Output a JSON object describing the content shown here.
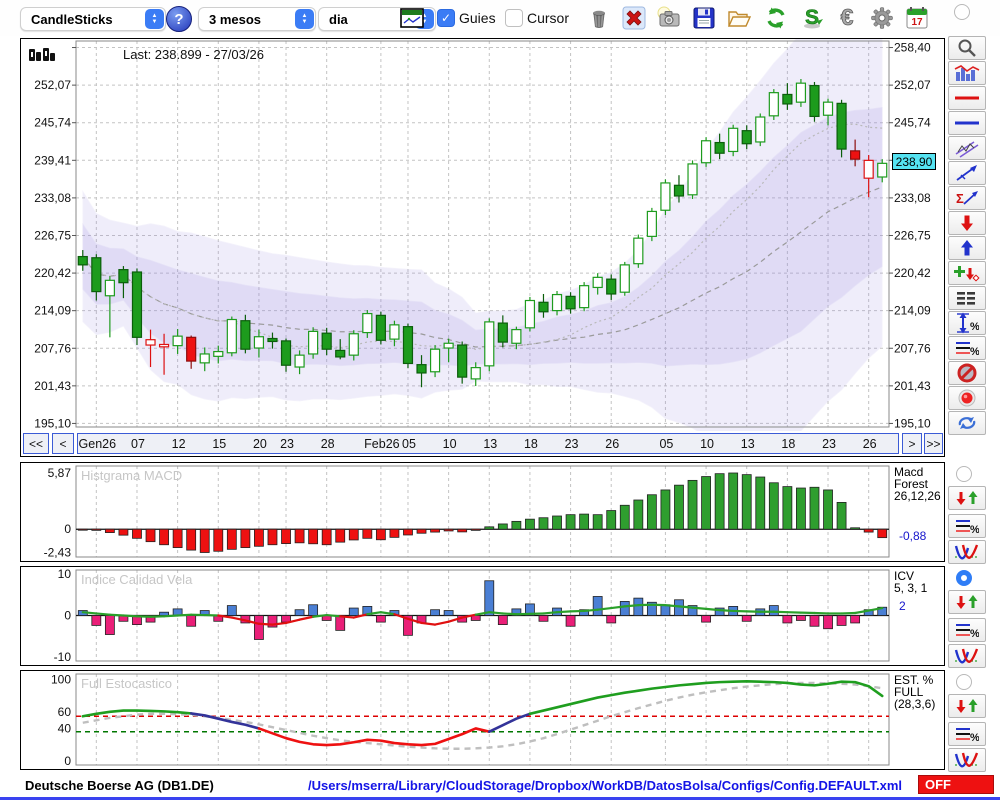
{
  "toolbar": {
    "chart_type": "CandleSticks",
    "period": "3 mesos",
    "interval": "dia",
    "guies_label": "Guies",
    "cursor_label": "Cursor",
    "calendar_day": "17",
    "icons": [
      "chart-config",
      "trash",
      "delete-red-x",
      "camera",
      "save-floppy",
      "open-folder",
      "refresh",
      "sync-s",
      "euro",
      "settings-gear",
      "calendar"
    ]
  },
  "sidebar": {
    "tools": [
      "zoom",
      "indicator-chart",
      "red-hline",
      "blue-hline",
      "channel",
      "trendline",
      "sigma-trend",
      "arrow-down-red",
      "arrow-up-blue",
      "add-signal",
      "levels",
      "vertical-range-percent",
      "lines-percent",
      "disable",
      "record",
      "sync-arrows"
    ],
    "panel_groups": [
      "select-radio",
      "arrows-updown",
      "lines-percent",
      "curve"
    ]
  },
  "main_chart": {
    "last_label": "Last: 238.899 - 27/03/26",
    "price_tag": "238,90",
    "nav": {
      "fast_back": "<<",
      "back": "<",
      "forward": ">",
      "fast_forward": ">>"
    }
  },
  "panels": {
    "macd": {
      "title": "Histgrama MACD",
      "label_lines": [
        "Macd",
        "Forest",
        "26,12,26"
      ],
      "value": "-0,88",
      "tick_labels": [
        "5,87",
        "0",
        "-2,43"
      ]
    },
    "icv": {
      "title": "Indice Calidad Vela",
      "label_lines": [
        "ICV",
        "5, 3, 1"
      ],
      "value": "2",
      "tick_labels": [
        "10",
        "0",
        "-10"
      ]
    },
    "stoch": {
      "title": "Full Estocastico",
      "label_lines": [
        "EST. %",
        "FULL",
        "(28,3,6)"
      ],
      "tick_labels": [
        "100",
        "60",
        "40",
        "0"
      ]
    }
  },
  "status": {
    "symbol": "Deutsche Boerse AG (DB1.DE)",
    "config_path": "/Users/mserra/Library/CloudStorage/Dropbox/WorkDB/DatosBolsa/Configs/Config.DEFAULT.xml",
    "off_label": "OFF"
  },
  "chart_data": {
    "type": "candlestick",
    "title": "Deutsche Boerse AG (DB1.DE) - daily, 3 months",
    "last": {
      "price": 238.899,
      "date": "27/03/26"
    },
    "ylim": [
      194.5,
      259.5
    ],
    "y_ticks": [
      195.1,
      201.43,
      207.76,
      214.09,
      220.42,
      226.75,
      233.08,
      239.41,
      245.74,
      252.07,
      258.4
    ],
    "y_tick_labels": [
      "195,10",
      "201,43",
      "207,76",
      "214,09",
      "220,42",
      "226,75",
      "233,08",
      "239,41",
      "245,74",
      "252,07",
      "258,40"
    ],
    "x_labels": {
      "indices": [
        1,
        4,
        7,
        10,
        13,
        15,
        18,
        22,
        24,
        27,
        30,
        33,
        36,
        39,
        43,
        46,
        49,
        52,
        55,
        58
      ],
      "labels": [
        "Gen26",
        "07",
        "12",
        "15",
        "20",
        "23",
        "28",
        "Feb26",
        "05",
        "10",
        "13",
        "18",
        "23",
        "26",
        "05",
        "10",
        "13",
        "18",
        "23",
        "26"
      ]
    },
    "style_legend": {
      "g": "solid green body",
      "G": "hollow white body green border",
      "r": "solid red body",
      "R": "hollow white body red border"
    },
    "candles": [
      [
        221.8,
        224.3,
        220.8,
        223.2,
        "g"
      ],
      [
        223.0,
        223.6,
        215.8,
        217.3,
        "g"
      ],
      [
        216.6,
        219.9,
        209.6,
        219.2,
        "G"
      ],
      [
        218.8,
        221.6,
        216.2,
        221.0,
        "g"
      ],
      [
        220.6,
        221.2,
        208.3,
        209.6,
        "g"
      ],
      [
        209.2,
        210.9,
        204.6,
        208.3,
        "R"
      ],
      [
        208.4,
        210.2,
        203.3,
        208.0,
        "R"
      ],
      [
        208.2,
        211.0,
        206.8,
        209.8,
        "G"
      ],
      [
        209.6,
        209.9,
        204.3,
        205.6,
        "r"
      ],
      [
        205.3,
        207.9,
        203.9,
        206.8,
        "G"
      ],
      [
        206.4,
        208.2,
        205.2,
        207.2,
        "G"
      ],
      [
        207.0,
        213.1,
        206.4,
        212.6,
        "G"
      ],
      [
        212.4,
        213.4,
        206.9,
        207.6,
        "g"
      ],
      [
        207.8,
        210.9,
        206.2,
        209.7,
        "G"
      ],
      [
        209.4,
        210.4,
        207.7,
        208.9,
        "g"
      ],
      [
        209.0,
        209.4,
        203.8,
        204.9,
        "g"
      ],
      [
        204.6,
        207.4,
        203.4,
        206.6,
        "G"
      ],
      [
        206.8,
        211.3,
        206.0,
        210.6,
        "G"
      ],
      [
        210.3,
        211.2,
        206.6,
        207.6,
        "g"
      ],
      [
        207.4,
        209.3,
        205.9,
        206.3,
        "g"
      ],
      [
        206.6,
        210.8,
        205.7,
        210.2,
        "G"
      ],
      [
        210.4,
        214.2,
        209.5,
        213.6,
        "G"
      ],
      [
        213.3,
        213.9,
        208.4,
        209.1,
        "g"
      ],
      [
        209.3,
        212.4,
        208.1,
        211.7,
        "G"
      ],
      [
        211.4,
        211.9,
        204.4,
        205.2,
        "g"
      ],
      [
        205.0,
        206.6,
        201.2,
        203.6,
        "g"
      ],
      [
        203.8,
        208.3,
        202.9,
        207.6,
        "G"
      ],
      [
        207.8,
        209.4,
        205.4,
        208.6,
        "G"
      ],
      [
        208.3,
        208.9,
        201.8,
        202.9,
        "g"
      ],
      [
        202.6,
        205.4,
        201.4,
        204.5,
        "G"
      ],
      [
        204.8,
        212.8,
        203.9,
        212.2,
        "G"
      ],
      [
        212.0,
        213.3,
        207.9,
        208.8,
        "g"
      ],
      [
        208.6,
        211.4,
        207.6,
        210.9,
        "G"
      ],
      [
        211.2,
        216.4,
        210.6,
        215.8,
        "G"
      ],
      [
        215.5,
        216.9,
        212.9,
        213.9,
        "g"
      ],
      [
        214.1,
        217.4,
        213.3,
        216.8,
        "G"
      ],
      [
        216.5,
        217.2,
        213.6,
        214.4,
        "g"
      ],
      [
        214.6,
        218.9,
        214.0,
        218.3,
        "G"
      ],
      [
        218.0,
        220.4,
        216.8,
        219.7,
        "G"
      ],
      [
        219.4,
        220.2,
        215.9,
        216.9,
        "g"
      ],
      [
        217.2,
        222.3,
        216.6,
        221.8,
        "G"
      ],
      [
        222.0,
        226.9,
        221.3,
        226.3,
        "G"
      ],
      [
        226.6,
        231.4,
        225.8,
        230.8,
        "G"
      ],
      [
        231.0,
        236.2,
        230.2,
        235.6,
        "G"
      ],
      [
        235.2,
        236.9,
        232.3,
        233.4,
        "g"
      ],
      [
        233.6,
        239.4,
        232.9,
        238.8,
        "G"
      ],
      [
        239.0,
        243.3,
        238.3,
        242.7,
        "G"
      ],
      [
        242.4,
        243.9,
        239.6,
        240.6,
        "g"
      ],
      [
        240.9,
        245.4,
        240.1,
        244.8,
        "G"
      ],
      [
        244.4,
        245.3,
        241.3,
        242.2,
        "g"
      ],
      [
        242.5,
        247.3,
        241.8,
        246.7,
        "G"
      ],
      [
        246.9,
        251.4,
        246.2,
        250.8,
        "G"
      ],
      [
        250.5,
        252.4,
        247.9,
        248.9,
        "g"
      ],
      [
        249.2,
        253.1,
        248.4,
        252.4,
        "G"
      ],
      [
        252.0,
        252.6,
        245.9,
        246.8,
        "g"
      ],
      [
        247.0,
        249.8,
        245.3,
        249.2,
        "G"
      ],
      [
        249.0,
        249.6,
        239.9,
        241.3,
        "g"
      ],
      [
        241.0,
        242.9,
        238.4,
        239.6,
        "r"
      ],
      [
        239.4,
        240.3,
        233.2,
        236.4,
        "R"
      ],
      [
        236.6,
        239.6,
        235.7,
        238.9,
        "G"
      ]
    ],
    "bollinger": {
      "window": 26,
      "outer_mult": 2.2,
      "inner_mult": 1.1,
      "fill": "#9484e1"
    },
    "macd": {
      "type": "bar",
      "ylim": [
        -2.9,
        6.6
      ],
      "ticks": [
        5.87,
        0,
        -2.43
      ],
      "last": -0.88,
      "pos_color": "#2f9e2f",
      "neg_color": "#ee1111",
      "values": [
        -0.05,
        -0.12,
        -0.35,
        -0.62,
        -0.95,
        -1.3,
        -1.62,
        -1.92,
        -2.18,
        -2.43,
        -2.3,
        -2.1,
        -1.92,
        -1.78,
        -1.62,
        -1.5,
        -1.42,
        -1.52,
        -1.62,
        -1.35,
        -1.12,
        -0.95,
        -1.1,
        -0.85,
        -0.6,
        -0.42,
        -0.3,
        -0.18,
        -0.28,
        -0.12,
        0.25,
        0.55,
        0.82,
        1.05,
        1.2,
        1.38,
        1.52,
        1.58,
        1.52,
        1.95,
        2.5,
        3.05,
        3.6,
        4.1,
        4.6,
        5.1,
        5.5,
        5.8,
        5.87,
        5.7,
        5.45,
        4.85,
        4.45,
        4.3,
        4.38,
        4.1,
        2.8,
        0.15,
        -0.3,
        -0.88
      ]
    },
    "icv": {
      "type": "bar+line",
      "ylim": [
        -11,
        11
      ],
      "ticks": [
        10,
        0,
        -10
      ],
      "last": 2,
      "pos_color": "#4a7fd4",
      "neg_color": "#ea1f78",
      "bars": [
        1.2,
        -2.4,
        -4.6,
        -1.4,
        -2.2,
        -1.6,
        0.8,
        1.6,
        -2.6,
        1.2,
        -1.4,
        2.4,
        -1.8,
        -5.8,
        -2.8,
        -1.6,
        1.4,
        2.6,
        -1.2,
        -3.6,
        1.8,
        2.2,
        -1.6,
        1.2,
        -4.8,
        -1.8,
        1.4,
        1.2,
        -1.6,
        -1.2,
        8.4,
        -2.2,
        1.6,
        2.8,
        -1.4,
        1.8,
        -2.6,
        1.4,
        4.6,
        -1.8,
        3.4,
        4.2,
        3.2,
        2.6,
        3.8,
        2.4,
        -1.6,
        1.8,
        2.2,
        -1.4,
        1.6,
        2.4,
        -1.8,
        -1.2,
        -2.6,
        -3.2,
        -2.4,
        -1.8,
        1.4,
        2.0
      ],
      "line": [
        0.8,
        0.5,
        0.2,
        0.0,
        -0.2,
        -0.3,
        -0.2,
        0.0,
        0.2,
        0.1,
        0.0,
        -0.5,
        -1.2,
        -2.0,
        -2.2,
        -1.8,
        -1.0,
        -0.3,
        0.1,
        -0.2,
        -0.5,
        0.3,
        0.8,
        0.3,
        -0.8,
        -1.8,
        -2.2,
        -1.5,
        -0.5,
        0.2,
        0.8,
        0.5,
        0.3,
        0.4,
        0.5,
        0.8,
        1.0,
        1.1,
        1.4,
        1.8,
        2.2,
        2.5,
        2.6,
        2.5,
        2.2,
        1.9,
        1.6,
        1.3,
        1.1,
        1.0,
        0.9,
        0.9,
        0.8,
        0.7,
        0.6,
        0.5,
        0.5,
        0.6,
        1.2,
        1.8
      ]
    },
    "stoch": {
      "type": "line",
      "ylim": [
        -5,
        107
      ],
      "ticks": [
        100,
        60,
        40,
        0
      ],
      "thresholds": {
        "red": 55,
        "green": 36
      },
      "k": [
        55,
        58,
        60.5,
        62,
        62,
        61.5,
        61,
        60,
        58.5,
        56,
        52,
        48,
        44.5,
        40,
        34,
        28,
        23.5,
        20.5,
        19.5,
        20.5,
        23,
        26,
        25,
        22,
        20.5,
        19.5,
        21,
        27,
        33,
        40,
        36,
        44,
        52,
        58,
        62,
        66,
        70,
        74,
        78,
        81,
        84,
        86.5,
        89,
        91,
        93,
        94.5,
        96,
        97,
        97.5,
        98,
        97.5,
        97,
        96,
        94,
        93,
        95,
        97.5,
        97,
        92,
        80
      ],
      "signal": [
        47,
        50,
        53,
        55,
        57,
        58,
        58,
        57.5,
        56.5,
        55,
        53,
        50.5,
        48,
        45,
        41.5,
        38,
        34.5,
        31,
        28,
        25.5,
        23.5,
        22,
        20.5,
        19,
        17.5,
        16.5,
        15.5,
        15,
        15,
        15.5,
        16.5,
        18,
        20.5,
        24,
        28,
        33,
        38.5,
        44,
        49.5,
        55,
        60,
        65,
        69.5,
        74,
        78,
        81.5,
        84.5,
        87,
        89.5,
        91.5,
        93,
        94.5,
        95.5,
        96,
        96,
        95.5,
        95,
        94,
        92,
        89.5
      ],
      "k_segments": [
        {
          "to": 8,
          "color": "#1f9e1f"
        },
        {
          "to": 13,
          "color": "#333399"
        },
        {
          "to": 30,
          "color": "#ee1111"
        },
        {
          "to": 33,
          "color": "#333399"
        },
        {
          "to": 59,
          "color": "#1f9e1f"
        }
      ]
    }
  }
}
